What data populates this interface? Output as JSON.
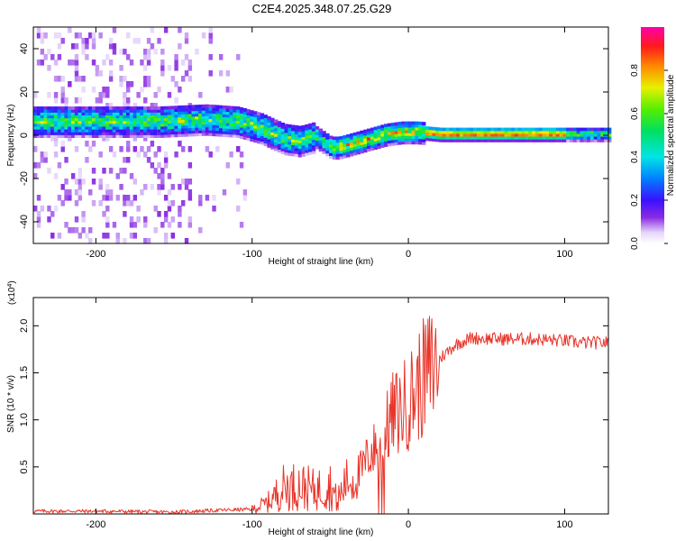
{
  "title": "C2E4.2025.348.07.25.G29",
  "colors": {
    "snr_line": "#e8352a",
    "frame": "#000000",
    "background": "#ffffff"
  },
  "chart_data": [
    {
      "type": "heatmap",
      "xlabel": "Height of straight line (km)",
      "ylabel": "Frequency (Hz)",
      "xlim": [
        -240,
        128
      ],
      "ylim": [
        -50,
        50
      ],
      "x_ticks": [
        -200,
        -100,
        0,
        100
      ],
      "x_tick_labels": [
        "-200",
        "-100",
        "0",
        "100"
      ],
      "y_ticks": [
        40,
        20,
        0,
        -20,
        -40
      ],
      "y_tick_labels": [
        "40",
        "20",
        "0",
        "-20",
        "-40"
      ],
      "ridge": {
        "description": "dominant frequency ridge (Hz) vs height (km)",
        "x": [
          -240,
          -200,
          -160,
          -130,
          -110,
          -95,
          -80,
          -70,
          -60,
          -50,
          -45,
          -35,
          -25,
          -15,
          -5,
          5,
          20,
          60,
          100,
          128
        ],
        "y": [
          6,
          6,
          6,
          7,
          6,
          3,
          -2,
          -3,
          -1,
          -6,
          -6,
          -4,
          -2,
          0,
          1,
          1,
          0,
          0,
          0,
          0
        ]
      },
      "colorbar": {
        "label": "Normalized spectral amplitude",
        "range": [
          0,
          1
        ],
        "ticks": [
          0.0,
          0.2,
          0.4,
          0.6,
          0.8
        ],
        "tick_labels": [
          "0.0",
          "0.2",
          "0.4",
          "0.6",
          "0.8"
        ]
      }
    },
    {
      "type": "line",
      "xlabel": "Height of straight line (km)",
      "ylabel": "SNR (10 * v/v)",
      "scale_note": "(x10",
      "scale_exp": "4",
      "scale_close": ")",
      "xlim": [
        -240,
        128
      ],
      "ylim": [
        0,
        2.3
      ],
      "x_ticks": [
        -200,
        -100,
        0,
        100
      ],
      "x_tick_labels": [
        "-200",
        "-100",
        "0",
        "100"
      ],
      "y_ticks": [
        2.0,
        1.5,
        1.0,
        0.5
      ],
      "y_tick_labels": [
        "2.0",
        "1.5",
        "1.0",
        "0.5"
      ],
      "envelope": {
        "description": "approximate mean SNR (x10^4) vs height (km); trace has noisy fluctuation around this envelope",
        "x": [
          -240,
          -200,
          -150,
          -120,
          -100,
          -90,
          -80,
          -70,
          -60,
          -50,
          -45,
          -40,
          -35,
          -30,
          -25,
          -20,
          -15,
          -10,
          -5,
          0,
          10,
          20,
          30,
          40,
          60,
          80,
          100,
          110,
          128
        ],
        "y": [
          0.03,
          0.03,
          0.02,
          0.04,
          0.05,
          0.12,
          0.28,
          0.3,
          0.25,
          0.3,
          0.12,
          0.35,
          0.35,
          0.45,
          0.65,
          0.7,
          0.85,
          1.05,
          1.1,
          1.2,
          1.45,
          1.65,
          1.8,
          1.87,
          1.86,
          1.86,
          1.84,
          1.82,
          1.82
        ]
      }
    }
  ]
}
